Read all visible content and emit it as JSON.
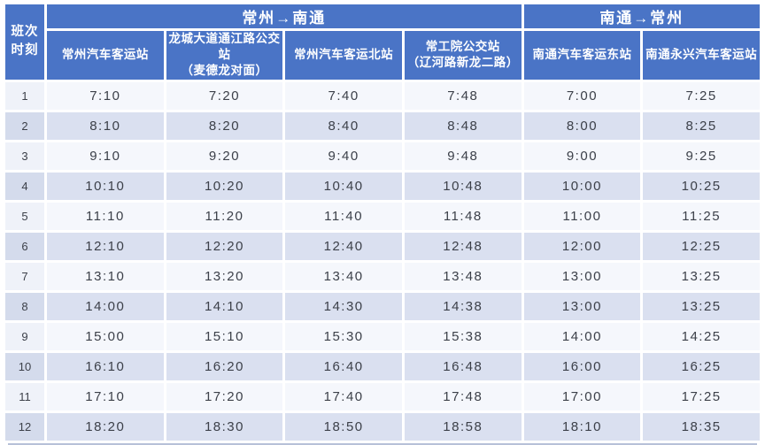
{
  "table": {
    "corner_header": {
      "line1": "班次",
      "line2": "时刻"
    },
    "direction_headers": {
      "czh_to_nt": "常州→南通",
      "nt_to_czh": "南通→常州"
    },
    "station_headers": [
      {
        "line1": "常州汽车客运站",
        "line2": ""
      },
      {
        "line1": "龙城大道通江路公交站",
        "line2": "（麦德龙对面）"
      },
      {
        "line1": "常州汽车客运北站",
        "line2": ""
      },
      {
        "line1": "常工院公交站",
        "line2": "（辽河路新龙二路）"
      },
      {
        "line1": "南通汽车客运东站",
        "line2": ""
      },
      {
        "line1": "南通永兴汽车客运站",
        "line2": ""
      }
    ],
    "rows": [
      {
        "no": "1",
        "times": [
          "7:10",
          "7:20",
          "7:40",
          "7:48",
          "7:00",
          "7:25"
        ]
      },
      {
        "no": "2",
        "times": [
          "8:10",
          "8:20",
          "8:40",
          "8:48",
          "8:00",
          "8:25"
        ]
      },
      {
        "no": "3",
        "times": [
          "9:10",
          "9:20",
          "9:40",
          "9:48",
          "9:00",
          "9:25"
        ]
      },
      {
        "no": "4",
        "times": [
          "10:10",
          "10:20",
          "10:40",
          "10:48",
          "10:00",
          "10:25"
        ]
      },
      {
        "no": "5",
        "times": [
          "11:10",
          "11:20",
          "11:40",
          "11:48",
          "11:00",
          "11:25"
        ]
      },
      {
        "no": "6",
        "times": [
          "12:10",
          "12:20",
          "12:40",
          "12:48",
          "12:00",
          "12:25"
        ]
      },
      {
        "no": "7",
        "times": [
          "13:10",
          "13:20",
          "13:40",
          "13:48",
          "13:00",
          "13:25"
        ]
      },
      {
        "no": "8",
        "times": [
          "14:00",
          "14:10",
          "14:30",
          "14:38",
          "13:00",
          "13:25"
        ]
      },
      {
        "no": "9",
        "times": [
          "15:00",
          "15:10",
          "15:30",
          "15:38",
          "14:00",
          "14:25"
        ]
      },
      {
        "no": "10",
        "times": [
          "16:10",
          "16:20",
          "16:40",
          "16:48",
          "16:00",
          "16:25"
        ]
      },
      {
        "no": "11",
        "times": [
          "17:10",
          "17:20",
          "17:40",
          "17:48",
          "17:00",
          "17:25"
        ]
      },
      {
        "no": "12",
        "times": [
          "18:20",
          "18:30",
          "18:50",
          "18:58",
          "18:10",
          "18:35"
        ]
      }
    ]
  },
  "colors": {
    "header_blue": "#4a74c6",
    "row_odd": "#f5f7fc",
    "row_even": "#dae0f0",
    "rowcol_odd": "#eff2f9",
    "rowcol_even": "#d4dbec",
    "text_dark": "#3c4049",
    "bottom_edge": "#b7c1d8",
    "page_bg": "#ffffff"
  }
}
